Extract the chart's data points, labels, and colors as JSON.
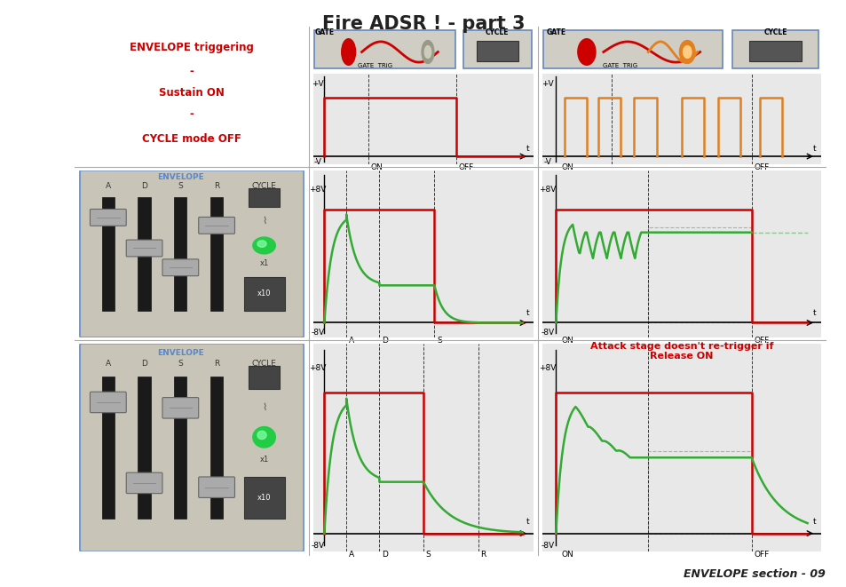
{
  "title": "Fire ADSR ! - part 3",
  "title_fontsize": 15,
  "footer": "ENVELOPE section - 09",
  "outer_border_color": "#cc0000",
  "left_text": [
    "ENVELOPE triggering",
    "-",
    "Sustain ON",
    "-",
    "CYCLE mode OFF"
  ],
  "annotation": "Attack stage doesn't re-trigger if\nRelease ON",
  "annotation_color": "#cc0000",
  "scope_bg": "#e8e8e8",
  "panel_bg": "#c8c5b8",
  "grid_color": "#aaaaaa",
  "green_signal": "#33aa33",
  "red_signal": "#cc0000",
  "orange_signal": "#e08020",
  "cols": [
    0.088,
    0.365,
    0.635,
    0.975
  ],
  "rows": [
    0.955,
    0.715,
    0.42,
    0.055
  ]
}
